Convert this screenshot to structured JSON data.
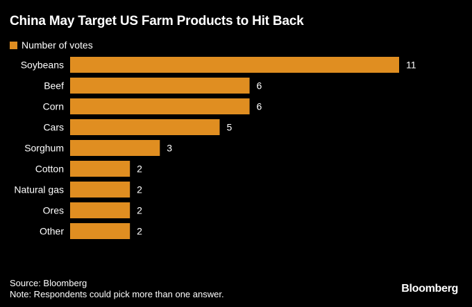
{
  "title": "China May Target US Farm Products to Hit Back",
  "legend": {
    "label": "Number of votes"
  },
  "colors": {
    "bar": "#E08E21",
    "background": "#000000",
    "text": "#FFFFFF"
  },
  "chart_data": {
    "type": "bar",
    "orientation": "horizontal",
    "categories": [
      "Soybeans",
      "Beef",
      "Corn",
      "Cars",
      "Sorghum",
      "Cotton",
      "Natural gas",
      "Ores",
      "Other"
    ],
    "series": [
      {
        "name": "Number of votes",
        "values": [
          11,
          6,
          6,
          5,
          3,
          2,
          2,
          2,
          2
        ]
      }
    ],
    "data_labels": [
      "11",
      "6",
      "6",
      "5",
      "3",
      "2",
      "2",
      "2",
      "2"
    ],
    "xlim": [
      0,
      11
    ],
    "grid": false,
    "legend_position": "top-left"
  },
  "footer": {
    "source": "Source: Bloomberg",
    "note": "Note: Respondents could pick more than one answer."
  },
  "brand": "Bloomberg"
}
